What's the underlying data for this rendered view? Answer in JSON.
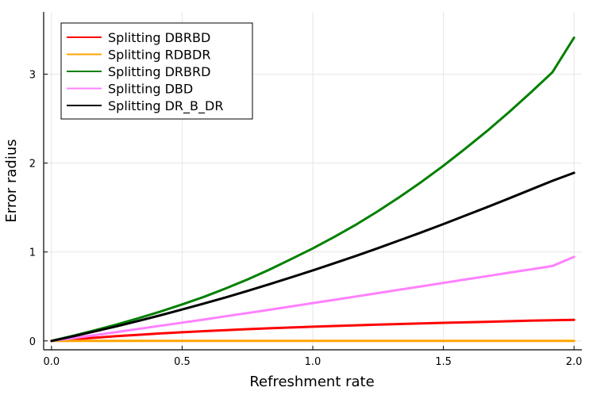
{
  "chart_data": {
    "type": "line",
    "title": "",
    "xlabel": "Refreshment rate",
    "ylabel": "Error radius",
    "xlim": [
      -0.03,
      2.03
    ],
    "ylim": [
      -0.1,
      3.7
    ],
    "xticks": [
      0.0,
      0.5,
      1.0,
      1.5,
      2.0
    ],
    "xtick_labels": [
      "0.0",
      "0.5",
      "1.0",
      "1.5",
      "2.0"
    ],
    "yticks": [
      0,
      1,
      2,
      3
    ],
    "ytick_labels": [
      "0",
      "1",
      "2",
      "3"
    ],
    "grid": true,
    "legend_position": "top-left",
    "x": [
      0.0,
      0.083,
      0.167,
      0.25,
      0.333,
      0.417,
      0.5,
      0.583,
      0.667,
      0.75,
      0.833,
      0.917,
      1.0,
      1.083,
      1.167,
      1.25,
      1.333,
      1.417,
      1.5,
      1.583,
      1.667,
      1.75,
      1.833,
      1.917,
      2.0
    ],
    "series": [
      {
        "name": "Splitting DBRBD",
        "color": "#ff0000",
        "values": [
          0.0,
          0.018,
          0.036,
          0.053,
          0.069,
          0.084,
          0.097,
          0.11,
          0.121,
          0.132,
          0.142,
          0.151,
          0.16,
          0.168,
          0.176,
          0.183,
          0.19,
          0.197,
          0.203,
          0.209,
          0.215,
          0.221,
          0.227,
          0.232,
          0.237
        ]
      },
      {
        "name": "Splitting RDBDR",
        "color": "#ffa500",
        "values": [
          0.0,
          0.0,
          0.0,
          0.0,
          0.0,
          0.0,
          0.0,
          0.0,
          0.0,
          0.0,
          0.0,
          0.0,
          0.0,
          0.0,
          0.0,
          0.0,
          0.0,
          0.0,
          0.0,
          0.0,
          0.0,
          0.0,
          0.0,
          0.0,
          0.0
        ]
      },
      {
        "name": "Splitting DRBRD",
        "color": "#008000",
        "values": [
          0.0,
          0.058,
          0.12,
          0.185,
          0.255,
          0.33,
          0.41,
          0.495,
          0.59,
          0.69,
          0.8,
          0.92,
          1.04,
          1.17,
          1.31,
          1.46,
          1.62,
          1.79,
          1.97,
          2.16,
          2.36,
          2.57,
          2.79,
          3.02,
          3.41
        ]
      },
      {
        "name": "Splitting DBD",
        "color": "#ff80ff",
        "values": [
          0.0,
          0.031,
          0.065,
          0.1,
          0.135,
          0.17,
          0.205,
          0.24,
          0.277,
          0.313,
          0.35,
          0.387,
          0.425,
          0.462,
          0.5,
          0.538,
          0.576,
          0.614,
          0.652,
          0.69,
          0.728,
          0.766,
          0.804,
          0.842,
          0.945
        ]
      },
      {
        "name": "Splitting DR_B_DR",
        "color": "#000000",
        "values": [
          0.0,
          0.052,
          0.108,
          0.165,
          0.225,
          0.288,
          0.353,
          0.42,
          0.49,
          0.562,
          0.637,
          0.714,
          0.793,
          0.874,
          0.958,
          1.044,
          1.132,
          1.222,
          1.314,
          1.408,
          1.504,
          1.601,
          1.7,
          1.8,
          1.89
        ]
      }
    ]
  }
}
